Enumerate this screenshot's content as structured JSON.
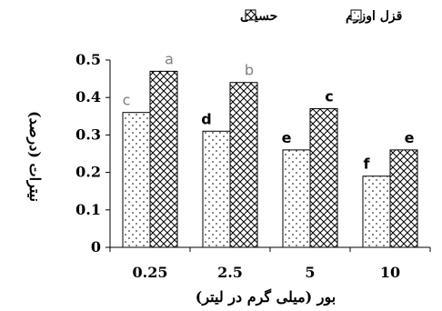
{
  "chart_data": {
    "type": "bar",
    "xlabel": "بور (میلی گرم در لیتر)",
    "ylabel": "نیترات (درصد)",
    "categories": [
      "0.25",
      "2.5",
      "5",
      "10"
    ],
    "ylim": [
      0,
      0.5
    ],
    "yticks": [
      "0",
      "0.1",
      "0.2",
      "0.3",
      "0.4",
      "0.5"
    ],
    "legend_position": "top",
    "series": [
      {
        "name": "قزل اوزوم",
        "pattern": "dots",
        "values": [
          0.36,
          0.31,
          0.26,
          0.19
        ],
        "labels": [
          "c",
          "d",
          "e",
          "f"
        ],
        "label_colors": [
          "#7f7f7f",
          "#000000",
          "#000000",
          "#000000"
        ]
      },
      {
        "name": "حسینی",
        "pattern": "crosshatch",
        "values": [
          0.47,
          0.44,
          0.37,
          0.26
        ],
        "labels": [
          "a",
          "b",
          "c",
          "e"
        ],
        "label_colors": [
          "#7f7f7f",
          "#7f7f7f",
          "#000000",
          "#000000"
        ]
      }
    ]
  }
}
